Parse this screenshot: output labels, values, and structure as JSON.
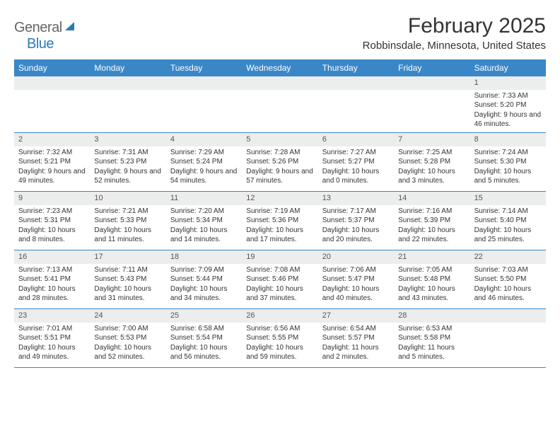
{
  "logo": {
    "text1": "General",
    "text2": "Blue"
  },
  "title": "February 2025",
  "location": "Robbinsdale, Minnesota, United States",
  "colors": {
    "header_bar": "#3a87c8",
    "daynum_bg": "#eceded",
    "border": "#3a87c8",
    "logo_blue": "#2a7ab8"
  },
  "weekdays": [
    "Sunday",
    "Monday",
    "Tuesday",
    "Wednesday",
    "Thursday",
    "Friday",
    "Saturday"
  ],
  "weeks": [
    [
      {
        "n": "",
        "empty": true
      },
      {
        "n": "",
        "empty": true
      },
      {
        "n": "",
        "empty": true
      },
      {
        "n": "",
        "empty": true
      },
      {
        "n": "",
        "empty": true
      },
      {
        "n": "",
        "empty": true
      },
      {
        "n": "1",
        "sunrise": "Sunrise: 7:33 AM",
        "sunset": "Sunset: 5:20 PM",
        "daylight": "Daylight: 9 hours and 46 minutes."
      }
    ],
    [
      {
        "n": "2",
        "sunrise": "Sunrise: 7:32 AM",
        "sunset": "Sunset: 5:21 PM",
        "daylight": "Daylight: 9 hours and 49 minutes."
      },
      {
        "n": "3",
        "sunrise": "Sunrise: 7:31 AM",
        "sunset": "Sunset: 5:23 PM",
        "daylight": "Daylight: 9 hours and 52 minutes."
      },
      {
        "n": "4",
        "sunrise": "Sunrise: 7:29 AM",
        "sunset": "Sunset: 5:24 PM",
        "daylight": "Daylight: 9 hours and 54 minutes."
      },
      {
        "n": "5",
        "sunrise": "Sunrise: 7:28 AM",
        "sunset": "Sunset: 5:26 PM",
        "daylight": "Daylight: 9 hours and 57 minutes."
      },
      {
        "n": "6",
        "sunrise": "Sunrise: 7:27 AM",
        "sunset": "Sunset: 5:27 PM",
        "daylight": "Daylight: 10 hours and 0 minutes."
      },
      {
        "n": "7",
        "sunrise": "Sunrise: 7:25 AM",
        "sunset": "Sunset: 5:28 PM",
        "daylight": "Daylight: 10 hours and 3 minutes."
      },
      {
        "n": "8",
        "sunrise": "Sunrise: 7:24 AM",
        "sunset": "Sunset: 5:30 PM",
        "daylight": "Daylight: 10 hours and 5 minutes."
      }
    ],
    [
      {
        "n": "9",
        "sunrise": "Sunrise: 7:23 AM",
        "sunset": "Sunset: 5:31 PM",
        "daylight": "Daylight: 10 hours and 8 minutes."
      },
      {
        "n": "10",
        "sunrise": "Sunrise: 7:21 AM",
        "sunset": "Sunset: 5:33 PM",
        "daylight": "Daylight: 10 hours and 11 minutes."
      },
      {
        "n": "11",
        "sunrise": "Sunrise: 7:20 AM",
        "sunset": "Sunset: 5:34 PM",
        "daylight": "Daylight: 10 hours and 14 minutes."
      },
      {
        "n": "12",
        "sunrise": "Sunrise: 7:19 AM",
        "sunset": "Sunset: 5:36 PM",
        "daylight": "Daylight: 10 hours and 17 minutes."
      },
      {
        "n": "13",
        "sunrise": "Sunrise: 7:17 AM",
        "sunset": "Sunset: 5:37 PM",
        "daylight": "Daylight: 10 hours and 20 minutes."
      },
      {
        "n": "14",
        "sunrise": "Sunrise: 7:16 AM",
        "sunset": "Sunset: 5:39 PM",
        "daylight": "Daylight: 10 hours and 22 minutes."
      },
      {
        "n": "15",
        "sunrise": "Sunrise: 7:14 AM",
        "sunset": "Sunset: 5:40 PM",
        "daylight": "Daylight: 10 hours and 25 minutes."
      }
    ],
    [
      {
        "n": "16",
        "sunrise": "Sunrise: 7:13 AM",
        "sunset": "Sunset: 5:41 PM",
        "daylight": "Daylight: 10 hours and 28 minutes."
      },
      {
        "n": "17",
        "sunrise": "Sunrise: 7:11 AM",
        "sunset": "Sunset: 5:43 PM",
        "daylight": "Daylight: 10 hours and 31 minutes."
      },
      {
        "n": "18",
        "sunrise": "Sunrise: 7:09 AM",
        "sunset": "Sunset: 5:44 PM",
        "daylight": "Daylight: 10 hours and 34 minutes."
      },
      {
        "n": "19",
        "sunrise": "Sunrise: 7:08 AM",
        "sunset": "Sunset: 5:46 PM",
        "daylight": "Daylight: 10 hours and 37 minutes."
      },
      {
        "n": "20",
        "sunrise": "Sunrise: 7:06 AM",
        "sunset": "Sunset: 5:47 PM",
        "daylight": "Daylight: 10 hours and 40 minutes."
      },
      {
        "n": "21",
        "sunrise": "Sunrise: 7:05 AM",
        "sunset": "Sunset: 5:48 PM",
        "daylight": "Daylight: 10 hours and 43 minutes."
      },
      {
        "n": "22",
        "sunrise": "Sunrise: 7:03 AM",
        "sunset": "Sunset: 5:50 PM",
        "daylight": "Daylight: 10 hours and 46 minutes."
      }
    ],
    [
      {
        "n": "23",
        "sunrise": "Sunrise: 7:01 AM",
        "sunset": "Sunset: 5:51 PM",
        "daylight": "Daylight: 10 hours and 49 minutes."
      },
      {
        "n": "24",
        "sunrise": "Sunrise: 7:00 AM",
        "sunset": "Sunset: 5:53 PM",
        "daylight": "Daylight: 10 hours and 52 minutes."
      },
      {
        "n": "25",
        "sunrise": "Sunrise: 6:58 AM",
        "sunset": "Sunset: 5:54 PM",
        "daylight": "Daylight: 10 hours and 56 minutes."
      },
      {
        "n": "26",
        "sunrise": "Sunrise: 6:56 AM",
        "sunset": "Sunset: 5:55 PM",
        "daylight": "Daylight: 10 hours and 59 minutes."
      },
      {
        "n": "27",
        "sunrise": "Sunrise: 6:54 AM",
        "sunset": "Sunset: 5:57 PM",
        "daylight": "Daylight: 11 hours and 2 minutes."
      },
      {
        "n": "28",
        "sunrise": "Sunrise: 6:53 AM",
        "sunset": "Sunset: 5:58 PM",
        "daylight": "Daylight: 11 hours and 5 minutes."
      },
      {
        "n": "",
        "empty": true
      }
    ]
  ]
}
